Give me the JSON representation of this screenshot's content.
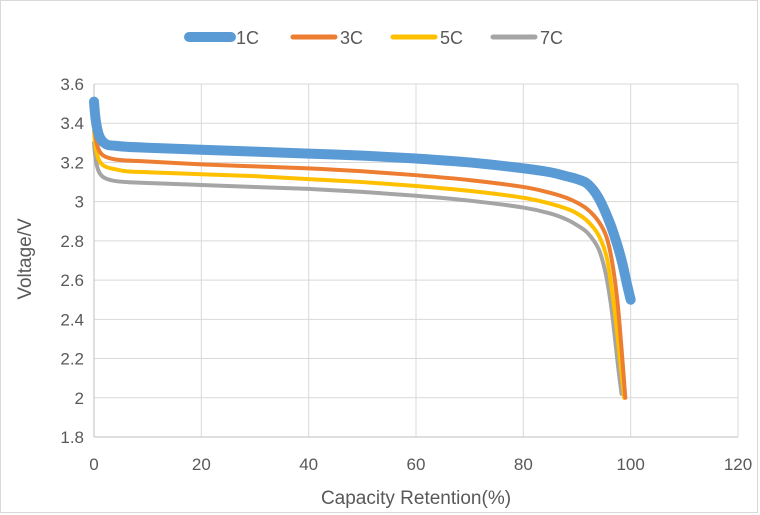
{
  "chart_data": {
    "type": "line",
    "title": "",
    "xlabel": "Capacity Retention(%)",
    "ylabel": "Voltage/V",
    "xlim": [
      0,
      120
    ],
    "ylim": [
      1.8,
      3.6
    ],
    "xticks": [
      0,
      20,
      40,
      60,
      80,
      100,
      120
    ],
    "yticks": [
      1.8,
      2,
      2.2,
      2.4,
      2.6,
      2.8,
      3,
      3.2,
      3.4,
      3.6
    ],
    "xtick_labels": [
      "0",
      "20",
      "40",
      "60",
      "80",
      "100",
      "120"
    ],
    "ytick_labels": [
      "1.8",
      "2",
      "2.2",
      "2.4",
      "2.6",
      "2.8",
      "3",
      "3.2",
      "3.4",
      "3.6"
    ],
    "grid": true,
    "legend_position": "top",
    "series": [
      {
        "name": "1C",
        "color": "#5b9bd5",
        "x": [
          0,
          0.3,
          0.8,
          1.5,
          2.5,
          4,
          6,
          10,
          20,
          30,
          40,
          50,
          60,
          70,
          80,
          85,
          88,
          90,
          92,
          94,
          96,
          97.5,
          98.5,
          99.3,
          100
        ],
        "y": [
          3.51,
          3.42,
          3.35,
          3.31,
          3.29,
          3.285,
          3.28,
          3.275,
          3.265,
          3.255,
          3.245,
          3.235,
          3.22,
          3.2,
          3.17,
          3.15,
          3.13,
          3.115,
          3.09,
          3.02,
          2.9,
          2.78,
          2.68,
          2.58,
          2.5
        ]
      },
      {
        "name": "3C",
        "color": "#ed7d31",
        "x": [
          0,
          0.3,
          0.8,
          1.5,
          2.5,
          4,
          6,
          10,
          20,
          30,
          40,
          50,
          60,
          70,
          80,
          85,
          88,
          90,
          92,
          94,
          95.5,
          96.5,
          97.5,
          98.3,
          99
        ],
        "y": [
          3.42,
          3.33,
          3.27,
          3.24,
          3.225,
          3.215,
          3.21,
          3.205,
          3.19,
          3.18,
          3.17,
          3.155,
          3.135,
          3.11,
          3.075,
          3.045,
          3.02,
          2.995,
          2.96,
          2.9,
          2.82,
          2.7,
          2.5,
          2.25,
          2.0
        ]
      },
      {
        "name": "5C",
        "color": "#ffc000",
        "x": [
          0,
          0.3,
          0.8,
          1.5,
          2.5,
          4,
          6,
          10,
          20,
          30,
          40,
          50,
          60,
          70,
          80,
          85,
          88,
          90,
          92,
          94,
          95.5,
          96.5,
          97.3,
          98,
          98.8
        ],
        "y": [
          3.36,
          3.28,
          3.22,
          3.19,
          3.175,
          3.165,
          3.155,
          3.15,
          3.14,
          3.13,
          3.115,
          3.1,
          3.08,
          3.055,
          3.02,
          2.99,
          2.965,
          2.94,
          2.9,
          2.83,
          2.72,
          2.55,
          2.38,
          2.2,
          2.0
        ]
      },
      {
        "name": "7C",
        "color": "#a5a5a5",
        "x": [
          0,
          0.3,
          0.8,
          1.5,
          2.5,
          4,
          6,
          10,
          20,
          30,
          40,
          50,
          60,
          70,
          80,
          85,
          88,
          90,
          92,
          94,
          95.3,
          96.3,
          97,
          97.7,
          98.3
        ],
        "y": [
          3.3,
          3.22,
          3.16,
          3.13,
          3.115,
          3.105,
          3.1,
          3.095,
          3.085,
          3.075,
          3.065,
          3.05,
          3.03,
          3.005,
          2.97,
          2.94,
          2.91,
          2.88,
          2.84,
          2.76,
          2.64,
          2.48,
          2.32,
          2.15,
          2.02
        ]
      }
    ]
  }
}
